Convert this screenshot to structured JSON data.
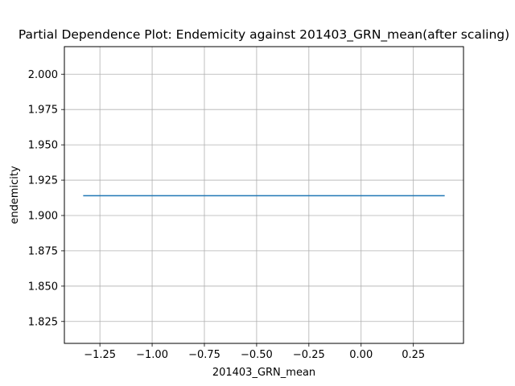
{
  "chart_data": {
    "type": "line",
    "title": "Partial Dependence Plot: Endemicity against 201403_GRN_mean(after scaling)",
    "xlabel": "201403_GRN_mean",
    "ylabel": "endemicity",
    "xlim": [
      -1.42,
      0.49
    ],
    "ylim": [
      1.8095,
      2.0195
    ],
    "x_ticks": [
      -1.25,
      -1.0,
      -0.75,
      -0.5,
      -0.25,
      0.0,
      0.25
    ],
    "x_tick_labels": [
      "−1.25",
      "−1.00",
      "−0.75",
      "−0.50",
      "−0.25",
      "0.00",
      "0.25"
    ],
    "y_ticks": [
      1.825,
      1.85,
      1.875,
      1.9,
      1.925,
      1.95,
      1.975,
      2.0
    ],
    "y_tick_labels": [
      "1.825",
      "1.850",
      "1.875",
      "1.900",
      "1.925",
      "1.950",
      "1.975",
      "2.000"
    ],
    "grid": true,
    "series": [
      {
        "color": "#1f77b4",
        "x": [
          -1.33,
          0.4
        ],
        "y": [
          1.914,
          1.914
        ]
      }
    ]
  }
}
